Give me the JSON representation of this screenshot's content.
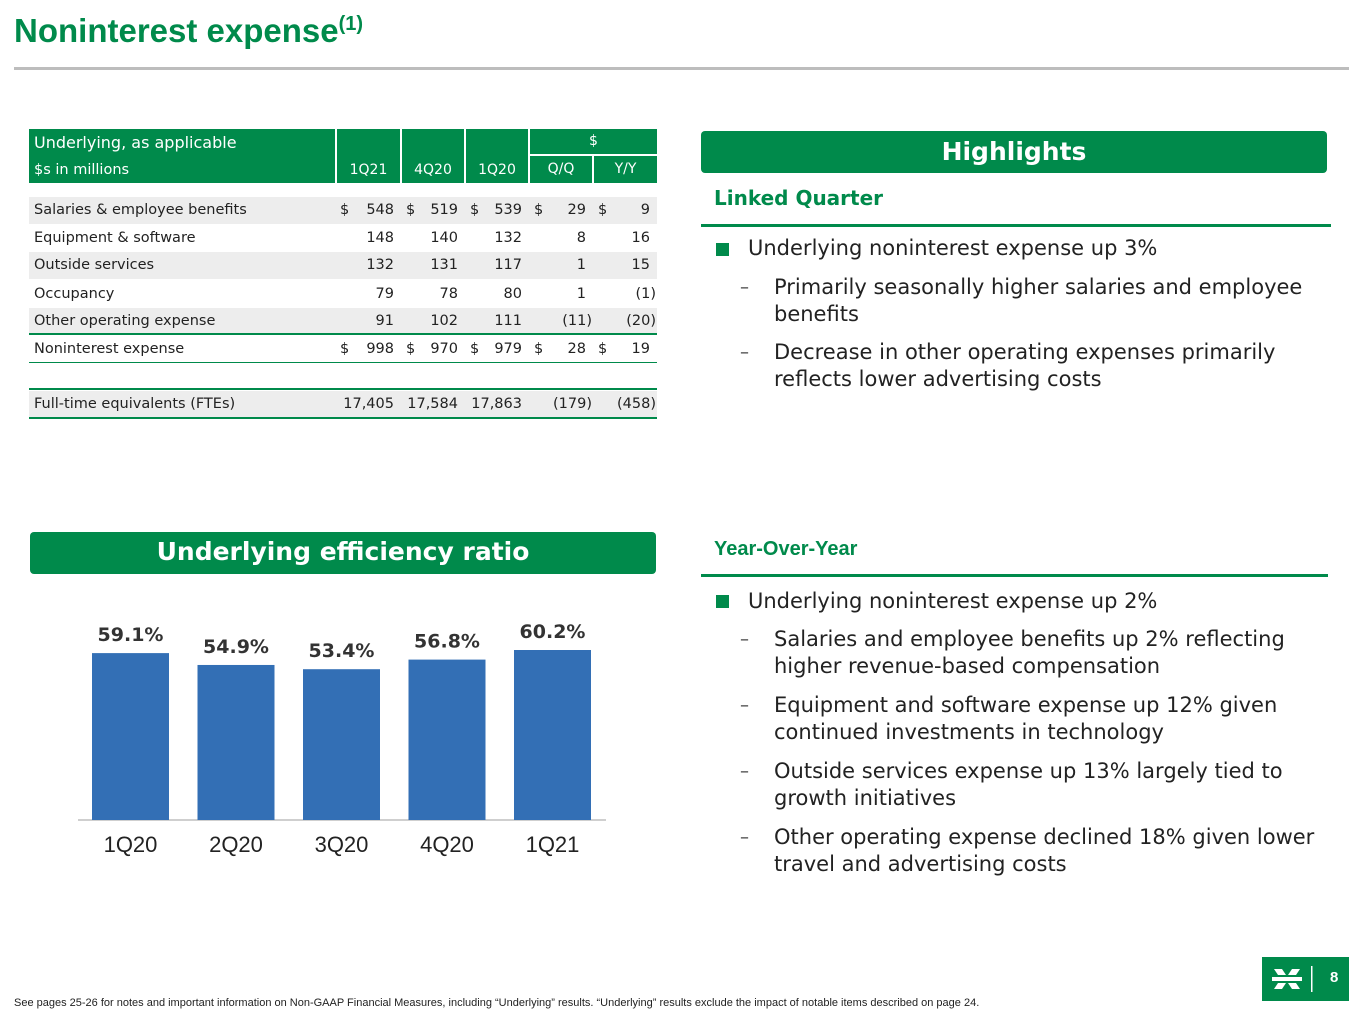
{
  "title": "Noninterest expense",
  "title_sup": "(1)",
  "table": {
    "header_line1": "Underlying, as applicable",
    "header_line2": "$s in millions",
    "dollar_header": "$",
    "columns": [
      "1Q21",
      "4Q20",
      "1Q20",
      "Q/Q",
      "Y/Y"
    ],
    "rows": [
      {
        "label": "Salaries & employee benefits",
        "values": [
          "548",
          "519",
          "539",
          "29",
          "9"
        ],
        "dollar": true
      },
      {
        "label": "Equipment & software",
        "values": [
          "148",
          "140",
          "132",
          "8",
          "16"
        ],
        "dollar": false
      },
      {
        "label": "Outside services",
        "values": [
          "132",
          "131",
          "117",
          "1",
          "15"
        ],
        "dollar": false
      },
      {
        "label": "Occupancy",
        "values": [
          "79",
          "78",
          "80",
          "1",
          "(1)"
        ],
        "dollar": false
      },
      {
        "label": "Other operating expense",
        "values": [
          "91",
          "102",
          "111",
          "(11)",
          "(20)"
        ],
        "dollar": false
      },
      {
        "label": "Noninterest expense",
        "values": [
          "998",
          "970",
          "979",
          "28",
          "19"
        ],
        "dollar": true
      },
      {
        "label": "Full-time equivalents (FTEs)",
        "values": [
          "17,405",
          "17,584",
          "17,863",
          "(179)",
          "(458)"
        ],
        "dollar": false
      }
    ],
    "dollar_sign": "$"
  },
  "highlights": {
    "heading": "Highlights",
    "linked_quarter": {
      "subheading": "Linked Quarter",
      "bullet": "Underlying noninterest expense up 3%",
      "sub_bullets": [
        "Primarily seasonally higher salaries and employee benefits",
        "Decrease in other operating expenses primarily reflects lower advertising costs"
      ]
    },
    "year_over_year": {
      "subheading": "Year-Over-Year",
      "bullet": "Underlying noninterest expense up 2%",
      "sub_bullets": [
        "Salaries and employee benefits up 2% reflecting higher revenue-based compensation",
        "Equipment and software expense up 12% given continued investments in technology",
        "Outside services expense up 13% largely tied to growth initiatives",
        "Other operating expense declined 18% given lower travel and advertising costs"
      ]
    },
    "dash": "–"
  },
  "efficiency_heading": "Underlying efficiency ratio",
  "chart_data": {
    "type": "bar",
    "categories": [
      "1Q20",
      "2Q20",
      "3Q20",
      "4Q20",
      "1Q21"
    ],
    "values": [
      59.1,
      54.9,
      53.4,
      56.8,
      60.2
    ],
    "data_labels": [
      "59.1%",
      "54.9%",
      "53.4%",
      "56.8%",
      "60.2%"
    ],
    "title": "",
    "xlabel": "",
    "ylabel": "",
    "color": "#336fb5",
    "grid": false
  },
  "footer": "See pages 25-26 for notes and important information on Non-GAAP Financial Measures, including “Underlying” results. “Underlying” results exclude the impact of notable items described on page 24.",
  "page_number": "8",
  "colors": {
    "brand_green": "#008a4b",
    "bar_blue": "#336fb5"
  }
}
